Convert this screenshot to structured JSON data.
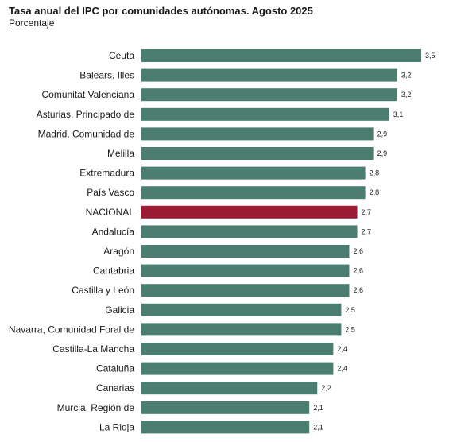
{
  "chart_data": {
    "type": "bar",
    "orientation": "horizontal",
    "title": "Tasa anual del IPC por comunidades autónomas. Agosto 2025",
    "subtitle": "Porcentaje",
    "categories": [
      "Ceuta",
      "Balears, Illes",
      "Comunitat Valenciana",
      "Asturias, Principado de",
      "Madrid, Comunidad de",
      "Melilla",
      "Extremadura",
      "País Vasco",
      "NACIONAL",
      "Andalucía",
      "Aragón",
      "Cantabria",
      "Castilla y León",
      "Galicia",
      "Navarra, Comunidad Foral de",
      "Castilla-La Mancha",
      "Cataluña",
      "Canarias",
      "Murcia, Región de",
      "La Rioja"
    ],
    "values": [
      3.5,
      3.2,
      3.2,
      3.1,
      2.9,
      2.9,
      2.8,
      2.8,
      2.7,
      2.7,
      2.6,
      2.6,
      2.6,
      2.5,
      2.5,
      2.4,
      2.4,
      2.2,
      2.1,
      2.1
    ],
    "value_labels": [
      "3,5",
      "3,2",
      "3,2",
      "3,1",
      "2,9",
      "2,9",
      "2,8",
      "2,8",
      "2,7",
      "2,7",
      "2,6",
      "2,6",
      "2,6",
      "2,5",
      "2,5",
      "2,4",
      "2,4",
      "2,2",
      "2,1",
      "2,1"
    ],
    "xlim": [
      0,
      3.5
    ],
    "grid": false,
    "colors": {
      "default": "#4b7d71",
      "highlight": "#9b1b34",
      "axis": "#555555"
    },
    "highlight_category": "NACIONAL"
  }
}
